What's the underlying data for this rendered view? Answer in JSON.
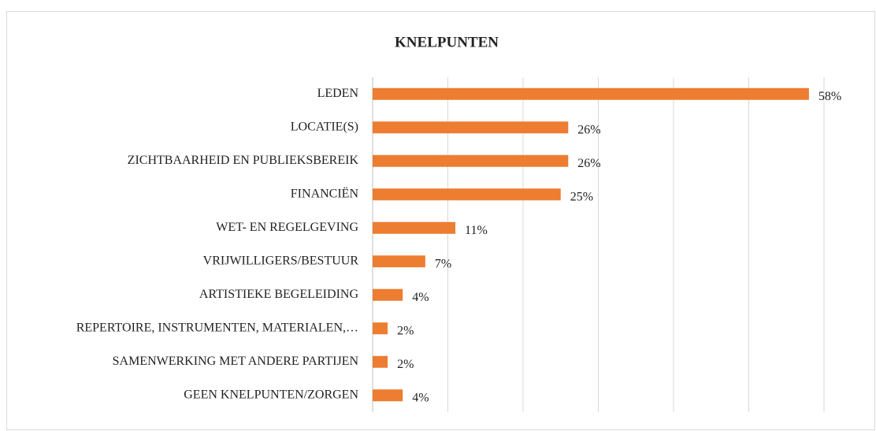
{
  "chart_data": {
    "type": "barh",
    "title": "KNELPUNTEN",
    "categories": [
      "LEDEN",
      "LOCATIE(S)",
      "ZICHTBAARHEID EN PUBLIEKSBEREIK",
      "FINANCIËN",
      "WET- EN REGELGEVING",
      "VRIJWILLIGERS/BESTUUR",
      "ARTISTIEKE BEGELEIDING",
      "REPERTOIRE, INSTRUMENTEN, MATERIALEN,…",
      "SAMENWERKING MET ANDERE PARTIJEN",
      "GEEN KNELPUNTEN/ZORGEN"
    ],
    "values": [
      58,
      26,
      26,
      25,
      11,
      7,
      4,
      2,
      2,
      4
    ],
    "value_labels": [
      "58%",
      "26%",
      "26%",
      "25%",
      "11%",
      "7%",
      "4%",
      "2%",
      "2%",
      "4%"
    ],
    "color": "#ed7d31",
    "xlim": [
      0,
      60
    ],
    "xticks": [
      0,
      10,
      20,
      30,
      40,
      50,
      60
    ],
    "grid": true
  }
}
